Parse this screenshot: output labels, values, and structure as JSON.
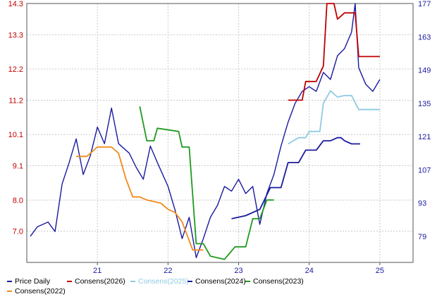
{
  "chart_data": {
    "type": "line",
    "x_ticks": [
      "21",
      "22",
      "23",
      "24",
      "25"
    ],
    "left_axis": {
      "ticks": [
        "7.0",
        "8.0",
        "9.1",
        "10.1",
        "11.2",
        "12.2",
        "13.3",
        "14.3"
      ],
      "range": [
        6.0,
        14.3
      ],
      "color": "#c00000"
    },
    "right_axis": {
      "ticks": [
        "79",
        "93",
        "107",
        "121",
        "135",
        "149",
        "163",
        "177"
      ],
      "range": [
        68,
        177
      ],
      "color": "#1a1aa0"
    },
    "grid": true,
    "legend_position": "bottom",
    "series": [
      {
        "name": "Price Daily",
        "axis": "right",
        "color": "#1a1aa0",
        "points": [
          [
            20.05,
            79
          ],
          [
            20.15,
            83
          ],
          [
            20.3,
            85
          ],
          [
            20.4,
            81
          ],
          [
            20.5,
            101
          ],
          [
            20.6,
            110
          ],
          [
            20.7,
            120
          ],
          [
            20.8,
            105
          ],
          [
            20.9,
            113
          ],
          [
            21.0,
            125
          ],
          [
            21.1,
            118
          ],
          [
            21.2,
            133
          ],
          [
            21.3,
            118
          ],
          [
            21.45,
            114
          ],
          [
            21.55,
            108
          ],
          [
            21.65,
            103
          ],
          [
            21.75,
            117
          ],
          [
            21.85,
            110
          ],
          [
            22.0,
            100
          ],
          [
            22.1,
            90
          ],
          [
            22.2,
            78
          ],
          [
            22.3,
            87
          ],
          [
            22.4,
            70
          ],
          [
            22.5,
            78
          ],
          [
            22.6,
            87
          ],
          [
            22.7,
            92
          ],
          [
            22.8,
            100
          ],
          [
            22.9,
            98
          ],
          [
            23.0,
            103
          ],
          [
            23.1,
            97
          ],
          [
            23.2,
            100
          ],
          [
            23.3,
            84
          ],
          [
            23.4,
            97
          ],
          [
            23.5,
            105
          ],
          [
            23.6,
            117
          ],
          [
            23.7,
            127
          ],
          [
            23.8,
            135
          ],
          [
            23.9,
            140
          ],
          [
            24.0,
            142
          ],
          [
            24.1,
            140
          ],
          [
            24.2,
            148
          ],
          [
            24.3,
            145
          ],
          [
            24.4,
            155
          ],
          [
            24.5,
            158
          ],
          [
            24.6,
            165
          ],
          [
            24.65,
            177
          ],
          [
            24.7,
            150
          ],
          [
            24.8,
            143
          ],
          [
            24.9,
            140
          ],
          [
            25.0,
            145
          ]
        ]
      },
      {
        "name": "Consens(2026)",
        "axis": "left",
        "color": "#c00000",
        "points": [
          [
            23.7,
            11.2
          ],
          [
            23.9,
            11.2
          ],
          [
            23.95,
            11.8
          ],
          [
            24.1,
            11.8
          ],
          [
            24.2,
            12.3
          ],
          [
            24.25,
            14.3
          ],
          [
            24.35,
            14.3
          ],
          [
            24.4,
            13.8
          ],
          [
            24.5,
            14.0
          ],
          [
            24.65,
            14.0
          ],
          [
            24.7,
            12.6
          ],
          [
            25.0,
            12.6
          ]
        ]
      },
      {
        "name": "Consens(2025)",
        "axis": "left",
        "color": "#8fcbe4",
        "points": [
          [
            23.7,
            9.8
          ],
          [
            23.85,
            10.0
          ],
          [
            23.95,
            10.0
          ],
          [
            24.0,
            10.2
          ],
          [
            24.15,
            10.2
          ],
          [
            24.2,
            11.1
          ],
          [
            24.3,
            11.5
          ],
          [
            24.4,
            11.3
          ],
          [
            24.5,
            11.35
          ],
          [
            24.6,
            11.35
          ],
          [
            24.7,
            10.9
          ],
          [
            25.0,
            10.9
          ]
        ]
      },
      {
        "name": "Consens(2024)",
        "axis": "left",
        "color": "#1a1aa0",
        "points": [
          [
            22.9,
            7.4
          ],
          [
            23.1,
            7.5
          ],
          [
            23.3,
            7.7
          ],
          [
            23.45,
            8.4
          ],
          [
            23.6,
            8.4
          ],
          [
            23.7,
            9.2
          ],
          [
            23.85,
            9.2
          ],
          [
            23.95,
            9.6
          ],
          [
            24.1,
            9.6
          ],
          [
            24.2,
            9.9
          ],
          [
            24.3,
            9.9
          ],
          [
            24.4,
            10.0
          ],
          [
            24.45,
            10.0
          ],
          [
            24.5,
            9.9
          ],
          [
            24.6,
            9.8
          ],
          [
            24.72,
            9.8
          ]
        ]
      },
      {
        "name": "Consens(2023)",
        "axis": "left",
        "color": "#1f9a1f",
        "points": [
          [
            21.6,
            11.0
          ],
          [
            21.7,
            9.9
          ],
          [
            21.8,
            9.9
          ],
          [
            21.85,
            10.3
          ],
          [
            22.15,
            10.2
          ],
          [
            22.2,
            9.7
          ],
          [
            22.3,
            9.7
          ],
          [
            22.4,
            6.6
          ],
          [
            22.5,
            6.6
          ],
          [
            22.6,
            6.2
          ],
          [
            22.8,
            6.1
          ],
          [
            22.95,
            6.5
          ],
          [
            23.1,
            6.5
          ],
          [
            23.2,
            7.4
          ],
          [
            23.3,
            7.4
          ],
          [
            23.4,
            8.0
          ],
          [
            23.5,
            8.0
          ]
        ]
      },
      {
        "name": "Consens(2022)",
        "axis": "left",
        "color": "#f08a1e",
        "points": [
          [
            20.7,
            9.4
          ],
          [
            20.85,
            9.4
          ],
          [
            21.0,
            9.7
          ],
          [
            21.2,
            9.7
          ],
          [
            21.3,
            9.5
          ],
          [
            21.4,
            8.7
          ],
          [
            21.5,
            8.1
          ],
          [
            21.6,
            8.1
          ],
          [
            21.7,
            8.0
          ],
          [
            21.9,
            7.9
          ],
          [
            22.0,
            7.7
          ],
          [
            22.1,
            7.6
          ],
          [
            22.2,
            7.3
          ],
          [
            22.35,
            6.4
          ],
          [
            22.5,
            6.4
          ]
        ]
      }
    ]
  }
}
